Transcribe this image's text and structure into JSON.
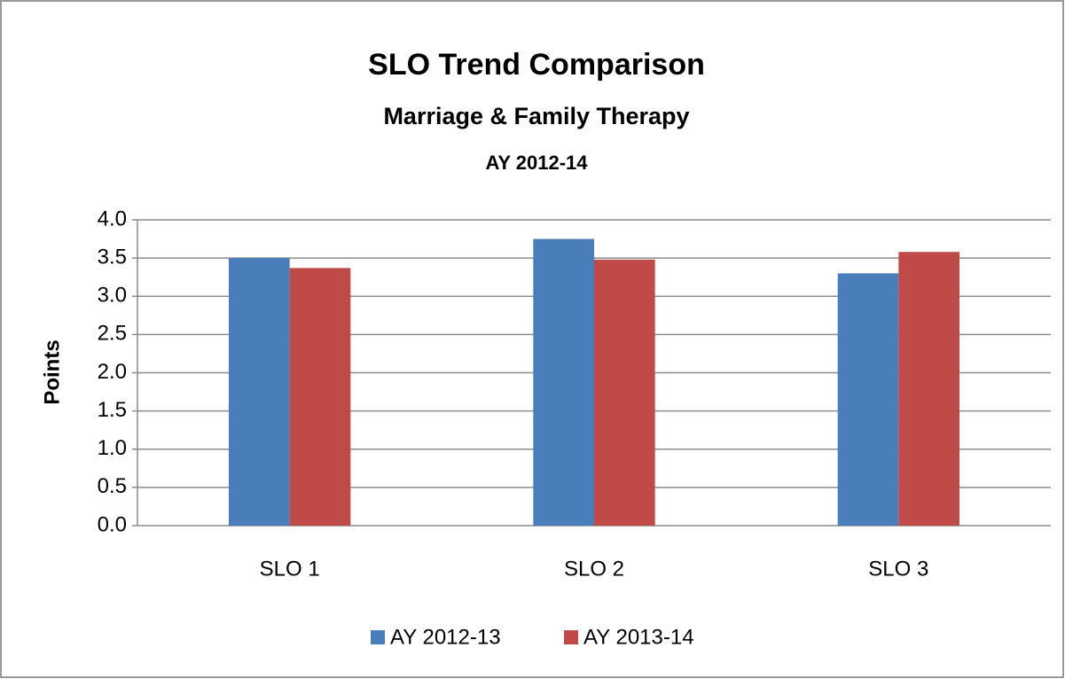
{
  "chart_data": {
    "type": "bar",
    "title": "SLO Trend Comparison",
    "subtitle": [
      "Marriage & Family Therapy",
      "AY 2012-14"
    ],
    "y_label": "Points",
    "categories": [
      "SLO 1",
      "SLO 2",
      "SLO 3"
    ],
    "series": [
      {
        "name": "AY 2012-13",
        "color": "#4a7ebb",
        "values": [
          3.5,
          3.75,
          3.3
        ]
      },
      {
        "name": "AY 2013-14",
        "color": "#be4b48",
        "values": [
          3.37,
          3.48,
          3.58
        ]
      }
    ],
    "ylim": [
      0,
      4
    ],
    "yticks": [
      {
        "value": 0,
        "label": "0.0"
      },
      0.5,
      {
        "value": 1,
        "label": "1.0"
      },
      1.5,
      {
        "value": 2,
        "label": "2.0"
      },
      2.5,
      {
        "value": 3,
        "label": "3.0"
      },
      3.5,
      {
        "value": 4,
        "label": "4.0"
      }
    ],
    "grid": true,
    "legend": "bottom"
  }
}
